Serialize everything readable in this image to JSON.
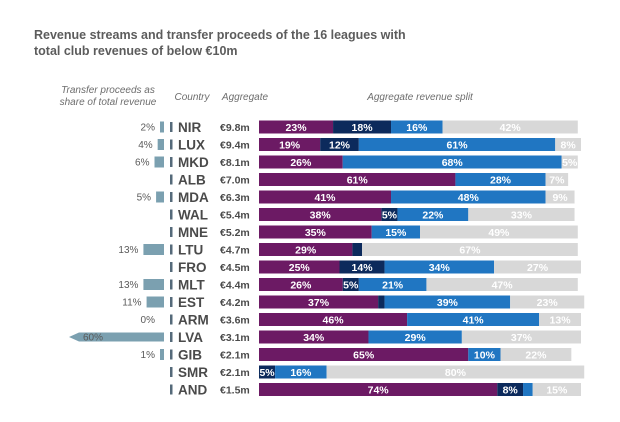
{
  "title_line1": "Revenue streams and transfer proceeds of the 16 leagues with",
  "title_line2": "total club revenues of below €10m",
  "headers": {
    "transfer_line1": "Transfer proceeds as",
    "transfer_line2": "share of total revenue",
    "country": "Country",
    "aggregate": "Aggregate",
    "split": "Aggregate revenue split"
  },
  "colors": {
    "purple": "#6c1a64",
    "navy": "#0c2a5c",
    "blue": "#2076c2",
    "grey": "#d8d8d8",
    "transfer_bar": "#7ba0b0",
    "country_dot": "#556a7a"
  },
  "chart_data": {
    "type": "bar",
    "orientation": "horizontal",
    "stacked": true,
    "title": "Revenue streams and transfer proceeds of the 16 leagues with total club revenues of below €10m",
    "categories": [
      "NIR",
      "LUX",
      "MKD",
      "ALB",
      "MDA",
      "WAL",
      "MNE",
      "LTU",
      "FRO",
      "MLT",
      "EST",
      "ARM",
      "LVA",
      "GIB",
      "SMR",
      "AND"
    ],
    "aggregate_revenue": [
      "€9.8m",
      "€9.4m",
      "€8.1m",
      "€7.0m",
      "€6.3m",
      "€5.4m",
      "€5.2m",
      "€4.7m",
      "€4.5m",
      "€4.4m",
      "€4.2m",
      "€3.6m",
      "€3.1m",
      "€2.1m",
      "€2.1m",
      "€1.5m"
    ],
    "transfer_share": {
      "values": [
        2,
        4,
        6,
        null,
        5,
        null,
        null,
        13,
        null,
        13,
        11,
        0,
        60,
        1,
        null,
        null
      ],
      "labels": [
        "2%",
        "4%",
        "6%",
        "",
        "5%",
        "",
        "",
        "13%",
        "",
        "13%",
        "11%",
        "0%",
        "60%",
        "1%",
        "",
        ""
      ]
    },
    "series": [
      {
        "name": "segment 1",
        "color": "#6c1a64",
        "values": [
          23,
          19,
          26,
          61,
          41,
          38,
          35,
          29,
          25,
          26,
          37,
          46,
          34,
          65,
          0,
          74
        ],
        "labels": [
          "23%",
          "19%",
          "26%",
          "61%",
          "41%",
          "38%",
          "35%",
          "29%",
          "25%",
          "26%",
          "37%",
          "46%",
          "34%",
          "65%",
          "",
          "74%"
        ]
      },
      {
        "name": "segment 2",
        "color": "#0c2a5c",
        "values": [
          18,
          12,
          0,
          0,
          0,
          5,
          0,
          3,
          14,
          5,
          2,
          0,
          0,
          0,
          5,
          8
        ],
        "labels": [
          "18%",
          "12%",
          "",
          "",
          "",
          "5%",
          "",
          "",
          "14%",
          "5%",
          "",
          "",
          "",
          "",
          "5%",
          "8%"
        ]
      },
      {
        "name": "segment 3",
        "color": "#2076c2",
        "values": [
          16,
          61,
          68,
          28,
          48,
          22,
          15,
          0,
          34,
          21,
          39,
          41,
          29,
          10,
          16,
          3
        ],
        "labels": [
          "16%",
          "61%",
          "68%",
          "28%",
          "48%",
          "22%",
          "15%",
          "",
          "34%",
          "21%",
          "39%",
          "41%",
          "29%",
          "10%",
          "16%",
          ""
        ]
      },
      {
        "name": "segment 4",
        "color": "#d8d8d8",
        "values": [
          42,
          8,
          5,
          7,
          9,
          33,
          49,
          67,
          27,
          47,
          23,
          13,
          37,
          22,
          80,
          15
        ],
        "labels": [
          "42%",
          "8%",
          "5%",
          "7%",
          "9%",
          "33%",
          "49%",
          "67%",
          "27%",
          "47%",
          "23%",
          "13%",
          "37%",
          "22%",
          "80%",
          "15%"
        ]
      }
    ],
    "xlim": [
      0,
      100
    ]
  }
}
